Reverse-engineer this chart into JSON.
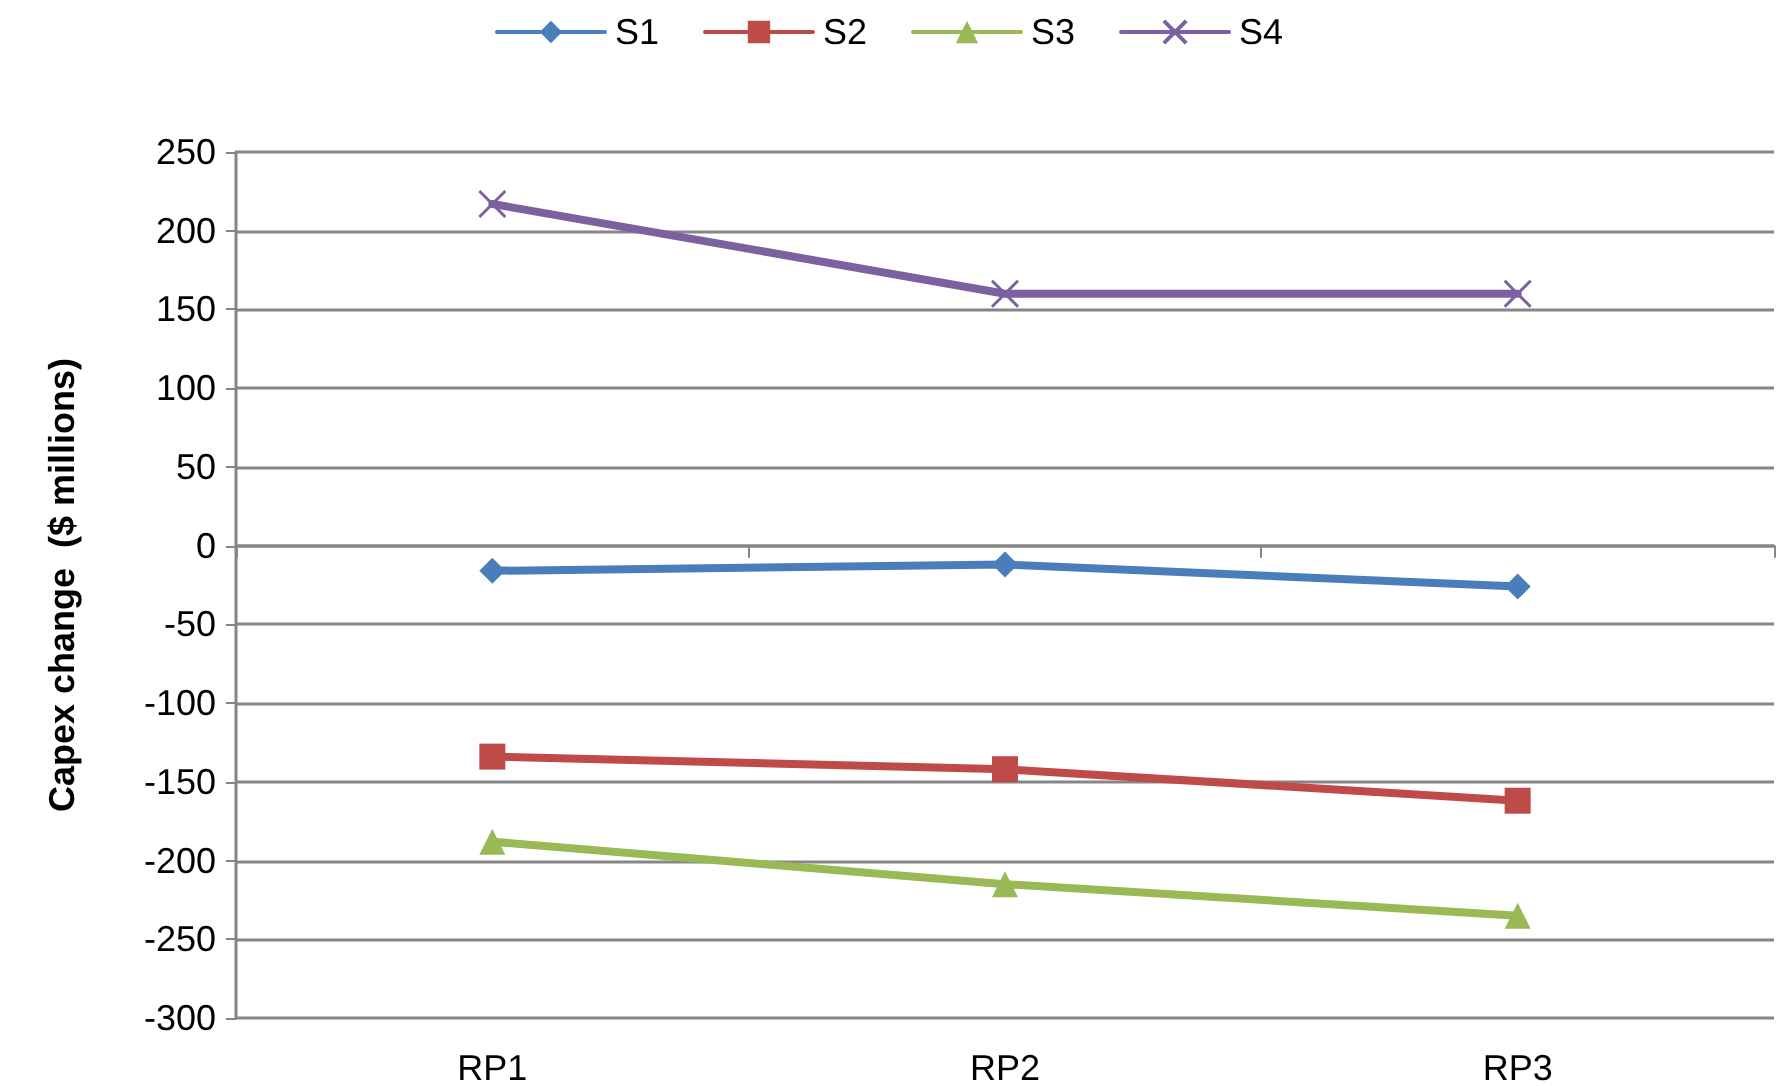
{
  "chart_data": {
    "type": "line",
    "ylabel": "Capex change  ($ millions)",
    "categories": [
      "RP1",
      "RP2",
      "RP3"
    ],
    "series": [
      {
        "name": "S1",
        "color": "#4a7ebb",
        "marker": "diamond",
        "values": [
          -16,
          -12,
          -26
        ]
      },
      {
        "name": "S2",
        "color": "#be4b48",
        "marker": "square",
        "values": [
          -134,
          -142,
          -162
        ]
      },
      {
        "name": "S3",
        "color": "#98b954",
        "marker": "triangle",
        "values": [
          -188,
          -215,
          -235
        ]
      },
      {
        "name": "S4",
        "color": "#7d60a0",
        "marker": "cross",
        "values": [
          217,
          160,
          160
        ]
      }
    ],
    "ylim": [
      -300,
      250
    ],
    "yticks": [
      -300,
      -250,
      -200,
      -150,
      -100,
      -50,
      0,
      50,
      100,
      150,
      200,
      250
    ],
    "grid": "y",
    "legend": "top",
    "line_style": "solid"
  }
}
